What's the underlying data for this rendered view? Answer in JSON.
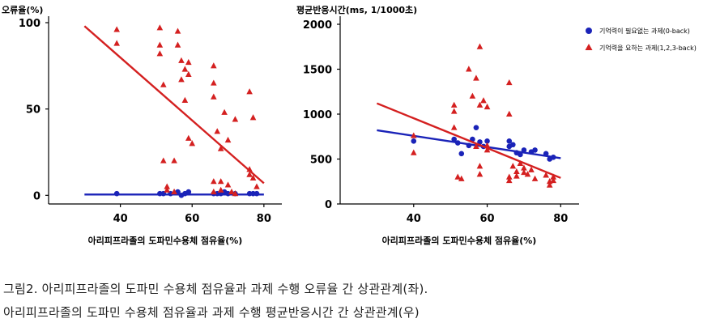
{
  "chart_data": [
    {
      "type": "scatter",
      "title": "오류율(%)",
      "xlabel": "아리피프라졸의 도파민수용체 점유율(%)",
      "ylabel": "",
      "xlim": [
        20,
        85
      ],
      "ylim": [
        -5,
        100
      ],
      "xticks": [
        40,
        60,
        80
      ],
      "yticks": [
        0,
        50,
        100
      ],
      "grid": false,
      "series": [
        {
          "name": "기억력이 필요없는 과제(0-back)",
          "color": "#1a23b8",
          "marker": "circle",
          "points": [
            [
              39,
              1
            ],
            [
              51,
              1
            ],
            [
              52,
              1
            ],
            [
              54,
              1
            ],
            [
              56,
              2
            ],
            [
              57,
              0
            ],
            [
              58,
              1
            ],
            [
              59,
              2
            ],
            [
              66,
              1
            ],
            [
              67,
              1
            ],
            [
              68,
              1
            ],
            [
              69,
              2
            ],
            [
              70,
              1
            ],
            [
              72,
              1
            ],
            [
              76,
              1
            ],
            [
              77,
              1
            ],
            [
              78,
              1
            ]
          ],
          "trend": [
            [
              30,
              0.5
            ],
            [
              80,
              0.5
            ]
          ]
        },
        {
          "name": "기억력을 요하는 과제(1,2,3-back)",
          "color": "#d42020",
          "marker": "triangle",
          "points": [
            [
              39,
              96
            ],
            [
              39,
              88
            ],
            [
              51,
              97
            ],
            [
              51,
              87
            ],
            [
              51,
              82
            ],
            [
              52,
              64
            ],
            [
              52,
              20
            ],
            [
              53,
              5
            ],
            [
              53,
              3
            ],
            [
              55,
              20
            ],
            [
              55,
              2
            ],
            [
              56,
              95
            ],
            [
              56,
              87
            ],
            [
              57,
              78
            ],
            [
              57,
              67
            ],
            [
              58,
              73
            ],
            [
              58,
              55
            ],
            [
              59,
              70
            ],
            [
              59,
              77
            ],
            [
              59,
              33
            ],
            [
              60,
              30
            ],
            [
              66,
              75
            ],
            [
              66,
              65
            ],
            [
              66,
              57
            ],
            [
              66,
              8
            ],
            [
              66,
              2
            ],
            [
              67,
              37
            ],
            [
              68,
              27
            ],
            [
              68,
              8
            ],
            [
              68,
              3
            ],
            [
              69,
              48
            ],
            [
              70,
              32
            ],
            [
              70,
              6
            ],
            [
              71,
              2
            ],
            [
              72,
              44
            ],
            [
              72,
              1
            ],
            [
              76,
              60
            ],
            [
              76,
              15
            ],
            [
              76,
              12
            ],
            [
              77,
              45
            ],
            [
              77,
              10
            ],
            [
              78,
              5
            ]
          ],
          "trend": [
            [
              30,
              98
            ],
            [
              80,
              7
            ]
          ]
        }
      ]
    },
    {
      "type": "scatter",
      "title": "평균반응시간(ms,  1/1000초)",
      "xlabel": "아리피프라졸의 도파민수용체 점유율(%)",
      "ylabel": "",
      "xlim": [
        20,
        85
      ],
      "ylim": [
        0,
        2000
      ],
      "xticks": [
        40,
        60,
        80
      ],
      "yticks": [
        0,
        500,
        1000,
        1500,
        2000
      ],
      "grid": false,
      "legend_position": "top-right",
      "series": [
        {
          "name": "기억력이 필요없는 과제(0-back)",
          "color": "#1a23b8",
          "marker": "circle",
          "points": [
            [
              40,
              700
            ],
            [
              51,
              720
            ],
            [
              52,
              680
            ],
            [
              53,
              560
            ],
            [
              55,
              650
            ],
            [
              56,
              720
            ],
            [
              57,
              850
            ],
            [
              58,
              690
            ],
            [
              59,
              640
            ],
            [
              60,
              700
            ],
            [
              66,
              640
            ],
            [
              66,
              700
            ],
            [
              67,
              660
            ],
            [
              68,
              570
            ],
            [
              69,
              550
            ],
            [
              70,
              600
            ],
            [
              72,
              580
            ],
            [
              73,
              600
            ],
            [
              76,
              560
            ],
            [
              77,
              500
            ],
            [
              78,
              520
            ]
          ],
          "trend": [
            [
              30,
              820
            ],
            [
              80,
              510
            ]
          ]
        },
        {
          "name": "기억력을 요하는 과제(1,2,3-back)",
          "color": "#d42020",
          "marker": "triangle",
          "points": [
            [
              40,
              760
            ],
            [
              40,
              570
            ],
            [
              51,
              1100
            ],
            [
              51,
              1030
            ],
            [
              51,
              850
            ],
            [
              52,
              300
            ],
            [
              53,
              280
            ],
            [
              55,
              1500
            ],
            [
              56,
              1200
            ],
            [
              57,
              1400
            ],
            [
              57,
              640
            ],
            [
              58,
              1750
            ],
            [
              58,
              1100
            ],
            [
              58,
              420
            ],
            [
              58,
              330
            ],
            [
              59,
              1150
            ],
            [
              60,
              1080
            ],
            [
              60,
              650
            ],
            [
              60,
              600
            ],
            [
              66,
              1350
            ],
            [
              66,
              1000
            ],
            [
              66,
              300
            ],
            [
              66,
              260
            ],
            [
              67,
              420
            ],
            [
              68,
              360
            ],
            [
              68,
              310
            ],
            [
              69,
              450
            ],
            [
              70,
              400
            ],
            [
              70,
              350
            ],
            [
              71,
              330
            ],
            [
              72,
              380
            ],
            [
              73,
              280
            ],
            [
              76,
              320
            ],
            [
              77,
              250
            ],
            [
              77,
              210
            ],
            [
              78,
              300
            ],
            [
              78,
              260
            ]
          ],
          "trend": [
            [
              30,
              1120
            ],
            [
              80,
              290
            ]
          ]
        }
      ]
    }
  ],
  "legend": {
    "items": [
      {
        "label": "기억력이 필요없는 과제(0-back)",
        "color": "#1a23b8",
        "marker": "circle"
      },
      {
        "label": "기억력을 요하는 과제(1,2,3-back)",
        "color": "#d42020",
        "marker": "triangle"
      }
    ]
  },
  "caption": {
    "line1": "그림2. 아리피프라졸의 도파민 수용체 점유율과 과제 수행 오류율 간 상관관계(좌).",
    "line2": "아리피프라졸의 도파민 수용체 점유율과 과제 수행 평균반응시간 간 상관관계(우)"
  }
}
